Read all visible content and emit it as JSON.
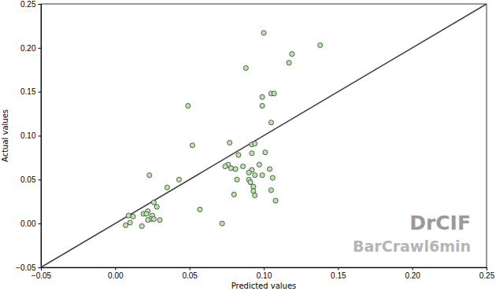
{
  "chart_data": {
    "type": "scatter",
    "x_label": "Predicted values",
    "y_label": "Actual values",
    "annotations": [
      {
        "text": "DrCIF"
      },
      {
        "text": "BarCrawl6min"
      }
    ],
    "color": "#b9e6a9",
    "marker": "circle",
    "x": [
      0.1,
      0.138,
      0.119,
      0.117,
      0.088,
      0.105,
      0.107,
      0.099,
      0.049,
      0.099,
      0.105,
      0.052,
      0.092,
      0.094,
      0.077,
      0.101,
      0.092,
      0.083,
      0.097,
      0.076,
      0.074,
      0.078,
      0.081,
      0.104,
      0.092,
      0.09,
      0.094,
      0.086,
      0.099,
      0.106,
      0.082,
      0.09,
      0.091,
      0.093,
      0.043,
      0.035,
      0.093,
      0.105,
      0.08,
      0.094,
      0.108,
      0.023,
      0.026,
      0.028,
      0.057,
      0.022,
      0.019,
      0.021,
      0.025,
      0.012,
      0.009,
      0.024,
      0.022,
      0.03,
      0.01,
      0.007,
      0.018,
      0.072,
      0.026
    ],
    "y": [
      0.217,
      0.203,
      0.193,
      0.183,
      0.177,
      0.148,
      0.148,
      0.144,
      0.134,
      0.134,
      0.115,
      0.089,
      0.09,
      0.091,
      0.092,
      0.081,
      0.08,
      0.078,
      0.067,
      0.067,
      0.065,
      0.063,
      0.062,
      0.062,
      0.061,
      0.058,
      0.055,
      0.065,
      0.055,
      0.052,
      0.05,
      0.05,
      0.047,
      0.042,
      0.05,
      0.041,
      0.037,
      0.038,
      0.033,
      0.032,
      0.026,
      0.055,
      0.024,
      0.019,
      0.016,
      0.014,
      0.011,
      0.011,
      0.009,
      0.008,
      0.009,
      0.005,
      0.004,
      0.004,
      0.001,
      -0.002,
      -0.003,
      0.0,
      0.005
    ],
    "xlim": [
      -0.05,
      0.25
    ],
    "ylim": [
      -0.05,
      0.25
    ],
    "xticks": [
      {
        "value": -0.05,
        "label": "−0.05"
      },
      {
        "value": 0.0,
        "label": "0.00"
      },
      {
        "value": 0.05,
        "label": "0.05"
      },
      {
        "value": 0.1,
        "label": "0.10"
      },
      {
        "value": 0.15,
        "label": "0.15"
      },
      {
        "value": 0.2,
        "label": "0.20"
      },
      {
        "value": 0.25,
        "label": "0.25"
      }
    ],
    "yticks": [
      {
        "value": -0.05,
        "label": "−0.05"
      },
      {
        "value": 0.0,
        "label": "0.00"
      },
      {
        "value": 0.05,
        "label": "0.05"
      },
      {
        "value": 0.1,
        "label": "0.10"
      },
      {
        "value": 0.15,
        "label": "0.15"
      },
      {
        "value": 0.2,
        "label": "0.20"
      },
      {
        "value": 0.25,
        "label": "0.25"
      }
    ],
    "grid": false
  }
}
